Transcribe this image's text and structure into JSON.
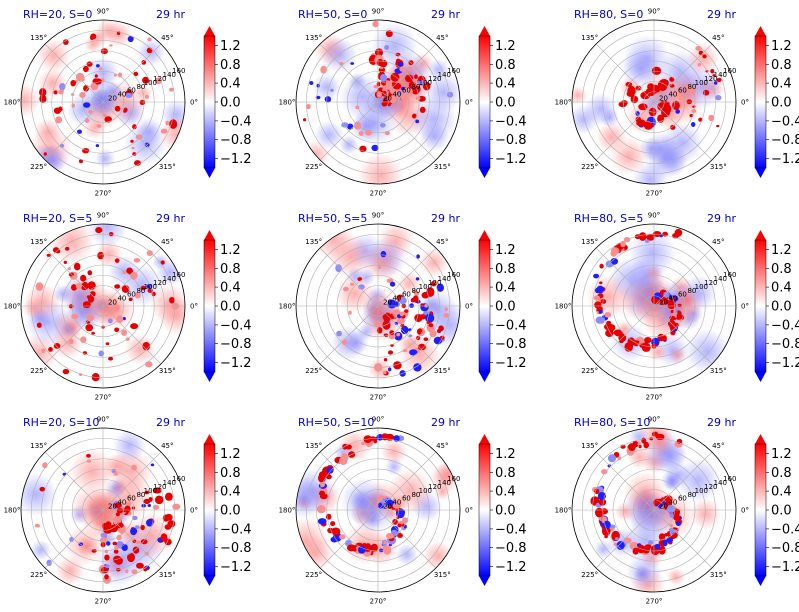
{
  "chart_data": {
    "type": "polar_field",
    "colormap": "bwr",
    "colorbar_ticks": [
      "1.2",
      "0.8",
      "0.4",
      "0.0",
      "−0.4",
      "−0.8",
      "−1.2"
    ],
    "angle_labels": [
      "90°",
      "135°",
      "180°",
      "225°",
      "270°",
      "315°",
      "0°",
      "45°"
    ],
    "radial_tick_labels": [
      "20",
      "40",
      "60",
      "80",
      "100",
      "120",
      "140",
      "160"
    ],
    "colors": {
      "positive": "#ff0000",
      "negative": "#0000ff",
      "title": "#0000cc"
    },
    "panels": [
      {
        "title_left": "RH=20, S=0",
        "title_right": "29 hr",
        "pattern": "scattered"
      },
      {
        "title_left": "RH=50, S=0",
        "title_right": "29 hr",
        "pattern": "band"
      },
      {
        "title_left": "RH=80, S=0",
        "title_right": "29 hr",
        "pattern": "ring"
      },
      {
        "title_left": "RH=20, S=5",
        "title_right": "29 hr",
        "pattern": "scattered"
      },
      {
        "title_left": "RH=50, S=5",
        "title_right": "29 hr",
        "pattern": "arc"
      },
      {
        "title_left": "RH=80, S=5",
        "title_right": "29 hr",
        "pattern": "spiral"
      },
      {
        "title_left": "RH=20, S=10",
        "title_right": "29 hr",
        "pattern": "arc"
      },
      {
        "title_left": "RH=50, S=10",
        "title_right": "29 hr",
        "pattern": "spiral"
      },
      {
        "title_left": "RH=80, S=10",
        "title_right": "29 hr",
        "pattern": "spiral"
      }
    ]
  }
}
